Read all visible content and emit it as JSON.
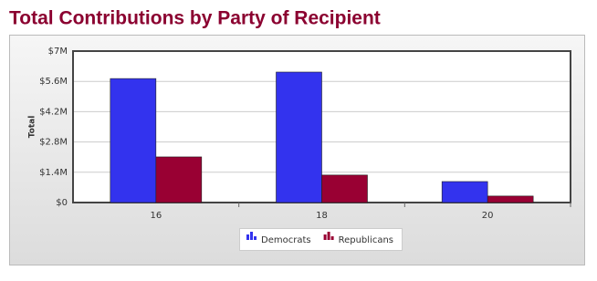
{
  "chart_data": {
    "type": "bar",
    "title": "Total Contributions by Party of Recipient",
    "y_label": "Total",
    "categories": [
      "16",
      "18",
      "20"
    ],
    "series": [
      {
        "name": "Democrats",
        "color": "#3333ee",
        "values": [
          5730000,
          6030000,
          970000
        ]
      },
      {
        "name": "Republicans",
        "color": "#990033",
        "values": [
          2110000,
          1270000,
          300000
        ]
      }
    ],
    "ylim": [
      0,
      7000000
    ],
    "yticks": [
      {
        "value": 0,
        "label": "$0"
      },
      {
        "value": 1400000,
        "label": "$1.4M"
      },
      {
        "value": 2800000,
        "label": "$2.8M"
      },
      {
        "value": 4200000,
        "label": "$4.2M"
      },
      {
        "value": 5600000,
        "label": "$5.6M"
      },
      {
        "value": 7000000,
        "label": "$7M"
      }
    ],
    "grid": true
  }
}
